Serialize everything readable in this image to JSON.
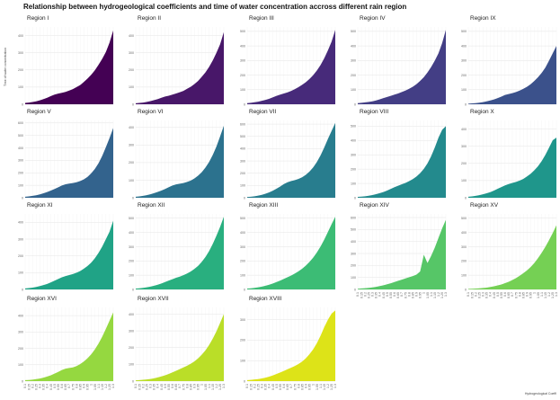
{
  "title": "Relationship between hydrogeological coefficients and time of water concentration accross different rain region",
  "ylabel": "Time of water concentration",
  "xlabel": "Hydrogeological Coeffi",
  "chart_data": {
    "type": "area",
    "title": "Relationship between hydrogeological coefficients and time of water concentration accross different rain region",
    "xlabel": "Hydrogeological Coeffi",
    "ylabel": "Time of water concentration",
    "x": [
      "0.1",
      "0.15",
      "0.2",
      "0.25",
      "0.3",
      "0.35",
      "0.4",
      "0.45",
      "0.5",
      "0.55",
      "0.6",
      "0.65",
      "0.7",
      "0.75",
      "0.8",
      "0.85",
      "0.9",
      "0.95",
      "1",
      "1.05",
      "1.1",
      "1.15",
      "1.2",
      "1.25",
      "1.3"
    ],
    "grid": true,
    "panels": [
      {
        "name": "Region I",
        "color": "#440154",
        "ylim": [
          0,
          450
        ],
        "yticks": [
          0,
          100,
          200,
          300,
          400
        ],
        "values": [
          8,
          10,
          13,
          17,
          23,
          30,
          38,
          48,
          56,
          62,
          67,
          72,
          80,
          88,
          100,
          112,
          130,
          150,
          172,
          198,
          230,
          265,
          305,
          360,
          430
        ]
      },
      {
        "name": "Region II",
        "color": "#481769",
        "ylim": [
          0,
          450
        ],
        "yticks": [
          0,
          100,
          200,
          300,
          400
        ],
        "values": [
          6,
          8,
          10,
          14,
          18,
          24,
          30,
          38,
          45,
          50,
          56,
          63,
          70,
          78,
          90,
          102,
          118,
          136,
          160,
          186,
          218,
          256,
          300,
          350,
          420
        ]
      },
      {
        "name": "Region III",
        "color": "#472A7A",
        "ylim": [
          0,
          530
        ],
        "yticks": [
          0,
          100,
          200,
          300,
          400,
          500
        ],
        "values": [
          8,
          10,
          14,
          18,
          24,
          30,
          38,
          48,
          58,
          66,
          74,
          82,
          92,
          104,
          118,
          134,
          152,
          174,
          200,
          232,
          270,
          316,
          370,
          430,
          510
        ]
      },
      {
        "name": "Region IV",
        "color": "#433E85",
        "ylim": [
          0,
          530
        ],
        "yticks": [
          0,
          100,
          200,
          300,
          400,
          500
        ],
        "values": [
          8,
          10,
          13,
          16,
          20,
          26,
          34,
          42,
          50,
          58,
          66,
          74,
          84,
          94,
          106,
          120,
          138,
          160,
          186,
          218,
          256,
          300,
          350,
          420,
          510
        ]
      },
      {
        "name": "Region IX",
        "color": "#3B518B",
        "ylim": [
          0,
          530
        ],
        "yticks": [
          0,
          100,
          200,
          300,
          400,
          500
        ],
        "values": [
          4,
          6,
          8,
          11,
          15,
          20,
          26,
          33,
          42,
          52,
          64,
          70,
          76,
          84,
          94,
          106,
          120,
          138,
          160,
          186,
          216,
          252,
          300,
          350,
          400
        ]
      },
      {
        "name": "Region V",
        "color": "#33638D",
        "ylim": [
          0,
          620
        ],
        "yticks": [
          0,
          100,
          200,
          300,
          400,
          500,
          600
        ],
        "values": [
          8,
          11,
          15,
          20,
          27,
          36,
          46,
          58,
          70,
          84,
          98,
          108,
          114,
          118,
          124,
          134,
          148,
          168,
          196,
          232,
          278,
          336,
          406,
          480,
          560
        ]
      },
      {
        "name": "Region VI",
        "color": "#2C728E",
        "ylim": [
          0,
          440
        ],
        "yticks": [
          0,
          100,
          200,
          300,
          400
        ],
        "values": [
          6,
          8,
          11,
          15,
          20,
          26,
          33,
          41,
          50,
          60,
          70,
          76,
          80,
          84,
          90,
          98,
          110,
          126,
          146,
          172,
          204,
          244,
          292,
          350,
          410
        ]
      },
      {
        "name": "Region VII",
        "color": "#287D8E",
        "ylim": [
          0,
          630
        ],
        "yticks": [
          0,
          100,
          200,
          300,
          400,
          500,
          600
        ],
        "values": [
          6,
          8,
          12,
          17,
          24,
          33,
          44,
          58,
          74,
          92,
          112,
          126,
          136,
          144,
          154,
          168,
          188,
          214,
          248,
          292,
          346,
          410,
          480,
          545,
          610
        ]
      },
      {
        "name": "Region VIII",
        "color": "#238A8D",
        "ylim": [
          0,
          540
        ],
        "yticks": [
          0,
          100,
          200,
          300,
          400,
          500
        ],
        "values": [
          6,
          8,
          10,
          14,
          19,
          25,
          32,
          40,
          50,
          62,
          74,
          84,
          94,
          104,
          116,
          130,
          148,
          172,
          202,
          240,
          290,
          352,
          420,
          475,
          500
        ]
      },
      {
        "name": "Region X",
        "color": "#1F968B",
        "ylim": [
          0,
          450
        ],
        "yticks": [
          0,
          100,
          200,
          300,
          400
        ],
        "values": [
          6,
          8,
          11,
          15,
          20,
          26,
          33,
          42,
          52,
          62,
          72,
          80,
          86,
          92,
          100,
          110,
          124,
          140,
          160,
          184,
          214,
          250,
          292,
          335,
          350
        ]
      },
      {
        "name": "Region XI",
        "color": "#20A386",
        "ylim": [
          0,
          450
        ],
        "yticks": [
          0,
          100,
          200,
          300,
          400
        ],
        "values": [
          6,
          8,
          11,
          15,
          20,
          26,
          33,
          42,
          52,
          62,
          72,
          80,
          86,
          92,
          100,
          110,
          124,
          140,
          160,
          186,
          218,
          256,
          300,
          345,
          410
        ]
      },
      {
        "name": "Region XII",
        "color": "#29AF7F",
        "ylim": [
          0,
          530
        ],
        "yticks": [
          0,
          100,
          200,
          300,
          400,
          500
        ],
        "values": [
          6,
          8,
          11,
          15,
          20,
          26,
          33,
          42,
          52,
          62,
          72,
          82,
          90,
          100,
          112,
          126,
          144,
          166,
          194,
          228,
          270,
          320,
          378,
          440,
          510
        ]
      },
      {
        "name": "Region XIII",
        "color": "#3CBC75",
        "ylim": [
          0,
          530
        ],
        "yticks": [
          0,
          100,
          200,
          300,
          400,
          500
        ],
        "values": [
          6,
          8,
          11,
          15,
          20,
          26,
          33,
          42,
          52,
          62,
          74,
          86,
          98,
          112,
          128,
          146,
          168,
          194,
          224,
          260,
          302,
          350,
          404,
          458,
          510
        ]
      },
      {
        "name": "Region XIV",
        "color": "#56C667",
        "ylim": [
          0,
          630
        ],
        "yticks": [
          0,
          100,
          200,
          300,
          400,
          500,
          600
        ],
        "values": [
          6,
          8,
          10,
          13,
          17,
          22,
          28,
          35,
          43,
          52,
          62,
          72,
          82,
          92,
          102,
          112,
          124,
          150,
          290,
          220,
          280,
          350,
          430,
          510,
          580
        ]
      },
      {
        "name": "Region XV",
        "color": "#75D054",
        "ylim": [
          0,
          530
        ],
        "yticks": [
          0,
          100,
          200,
          300,
          400,
          500
        ],
        "values": [
          4,
          5,
          6,
          8,
          10,
          13,
          17,
          22,
          28,
          35,
          44,
          54,
          66,
          80,
          96,
          114,
          134,
          158,
          186,
          220,
          258,
          300,
          346,
          396,
          450
        ]
      },
      {
        "name": "Region XVI",
        "color": "#95D840",
        "ylim": [
          0,
          450
        ],
        "yticks": [
          0,
          100,
          200,
          300,
          400
        ],
        "values": [
          6,
          7,
          9,
          12,
          16,
          21,
          28,
          36,
          46,
          56,
          68,
          76,
          80,
          84,
          92,
          104,
          120,
          140,
          164,
          194,
          230,
          272,
          320,
          370,
          420
        ]
      },
      {
        "name": "Region XVII",
        "color": "#BADE28",
        "ylim": [
          0,
          440
        ],
        "yticks": [
          0,
          100,
          200,
          300,
          400
        ],
        "values": [
          5,
          6,
          8,
          10,
          13,
          17,
          22,
          28,
          35,
          43,
          52,
          62,
          72,
          82,
          92,
          104,
          118,
          136,
          158,
          184,
          216,
          254,
          298,
          348,
          400
        ]
      },
      {
        "name": "Region XVIII",
        "color": "#DDE318",
        "ylim": [
          0,
          360
        ],
        "yticks": [
          0,
          100,
          200,
          300
        ],
        "values": [
          5,
          6,
          8,
          10,
          13,
          17,
          22,
          28,
          35,
          42,
          50,
          58,
          66,
          74,
          84,
          96,
          112,
          132,
          156,
          186,
          222,
          264,
          300,
          330,
          345
        ]
      }
    ]
  }
}
